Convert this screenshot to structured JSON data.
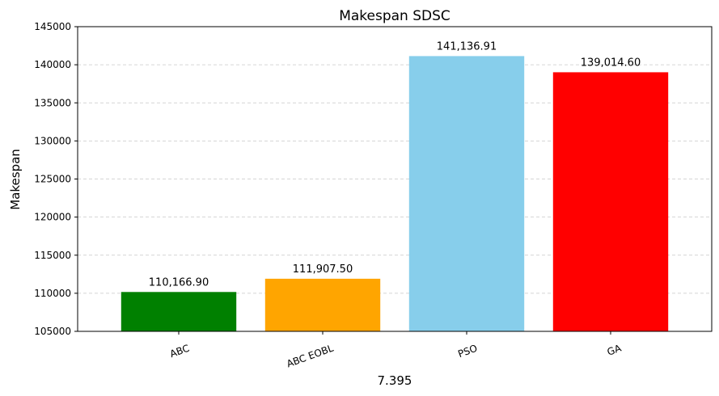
{
  "chart_data": {
    "type": "bar",
    "title": "Makespan SDSC",
    "xlabel": "7.395",
    "ylabel": "Makespan",
    "categories": [
      "ABC",
      "ABC EOBL",
      "PSO",
      "GA"
    ],
    "values": [
      110166.9,
      111907.5,
      141136.91,
      139014.6
    ],
    "value_labels": [
      "110,166.90",
      "111,907.50",
      "141,136.91",
      "139,014.60"
    ],
    "colors": [
      "#008000",
      "#FFA500",
      "#87CEEB",
      "#FF0000"
    ],
    "ylim": [
      105000,
      145000
    ],
    "yticks": [
      105000,
      110000,
      115000,
      120000,
      125000,
      130000,
      135000,
      140000,
      145000
    ],
    "ytick_labels": [
      "105000",
      "110000",
      "115000",
      "120000",
      "125000",
      "130000",
      "135000",
      "140000",
      "145000"
    ],
    "xtick_rotation_deg": 20,
    "grid": "y-dashed",
    "legend": "none"
  }
}
